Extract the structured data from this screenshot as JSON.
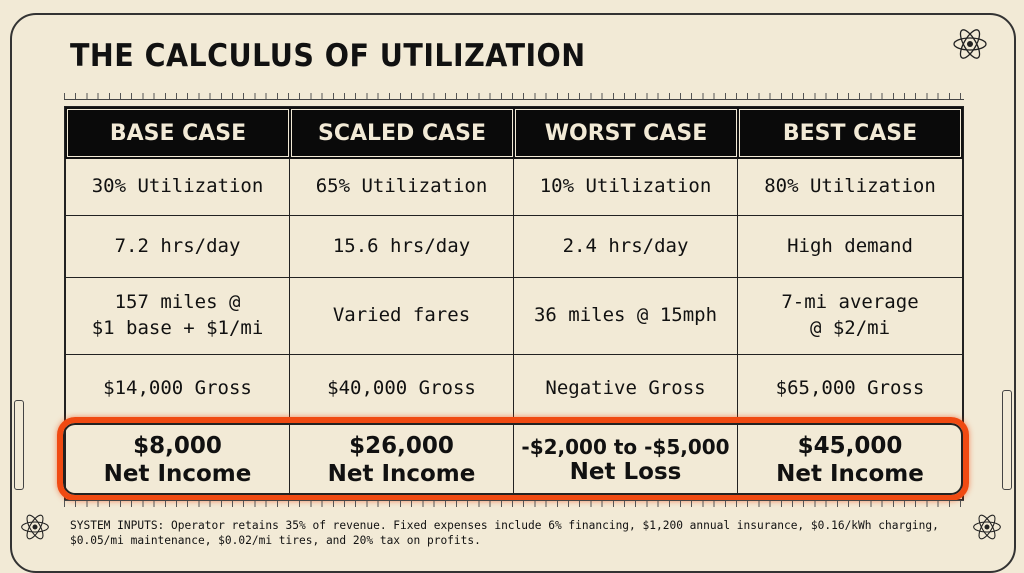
{
  "title": "THE CALCULUS OF UTILIZATION",
  "columns": [
    "BASE CASE",
    "SCALED CASE",
    "WORST CASE",
    "BEST CASE"
  ],
  "rows": [
    [
      "30% Utilization",
      "65% Utilization",
      "10% Utilization",
      "80% Utilization"
    ],
    [
      "7.2 hrs/day",
      "15.6 hrs/day",
      "2.4 hrs/day",
      "High demand"
    ],
    [
      "157 miles @\n$1 base + $1/mi",
      "Varied fares",
      "36 miles @ 15mph",
      "7-mi average\n@ $2/mi"
    ],
    [
      "$14,000 Gross",
      "$40,000 Gross",
      "Negative Gross",
      "$65,000 Gross"
    ]
  ],
  "net": [
    {
      "amount": "$8,000",
      "label": "Net Income"
    },
    {
      "amount": "$26,000",
      "label": "Net Income"
    },
    {
      "amount": "-$2,000 to -$5,000",
      "label": "Net Loss"
    },
    {
      "amount": "$45,000",
      "label": "Net Income"
    }
  ],
  "footer": "SYSTEM INPUTS: Operator retains 35% of revenue. Fixed expenses include 6% financing, $1,200 annual insurance, $0.16/kWh charging, $0.05/mi maintenance, $0.02/mi tires, and 20% tax on profits.",
  "colors": {
    "accent": "#f04a12",
    "background": "#f2ead6",
    "header": "#0a0a0a"
  }
}
